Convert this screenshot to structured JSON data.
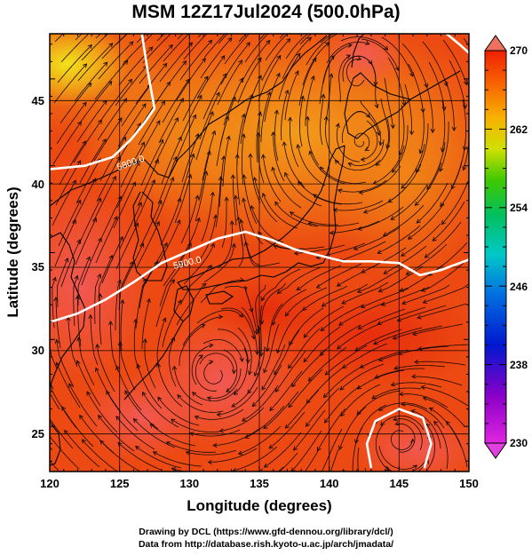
{
  "title": "MSM 12Z17Jul2024 (500.0hPa)",
  "chart_data": {
    "type": "map",
    "xlabel": "Longitude (degrees)",
    "ylabel": "Latitude  (degrees)",
    "xlim": [
      120,
      150
    ],
    "ylim": [
      22.4,
      47.6
    ],
    "x_ticks": [
      "120",
      "125",
      "130",
      "135",
      "140",
      "145",
      "150"
    ],
    "y_ticks": [
      "25",
      "30",
      "35",
      "40",
      "45"
    ],
    "colorbar": {
      "min": 230,
      "max": 270,
      "ticks": [
        "270",
        "262",
        "254",
        "246",
        "238",
        "230"
      ]
    },
    "contour_labels": [
      "5800.0",
      "5900.0"
    ],
    "contours": [
      {
        "value": 5800,
        "points": [
          [
            126.6,
            47.6
          ],
          [
            127.0,
            45.5
          ],
          [
            127.5,
            43.3
          ],
          [
            126.8,
            42.5
          ],
          [
            125.8,
            41.5
          ],
          [
            124.5,
            40.5
          ],
          [
            122.5,
            40.0
          ],
          [
            120.0,
            39.8
          ]
        ]
      },
      {
        "value": 5900,
        "points": [
          [
            120.0,
            31.0
          ],
          [
            122.0,
            31.5
          ],
          [
            124.0,
            32.3
          ],
          [
            126.0,
            33.3
          ],
          [
            128.0,
            34.4
          ],
          [
            130.0,
            35.1
          ],
          [
            132.0,
            35.8
          ],
          [
            134.0,
            36.2
          ],
          [
            136.0,
            35.7
          ],
          [
            137.5,
            35.2
          ],
          [
            139.0,
            34.9
          ],
          [
            141.0,
            34.5
          ],
          [
            143.0,
            34.5
          ],
          [
            145.0,
            34.4
          ],
          [
            146.5,
            33.7
          ],
          [
            148.0,
            34.0
          ],
          [
            150.0,
            34.6
          ]
        ]
      },
      {
        "value": 5900,
        "points": [
          [
            143.0,
            22.6
          ],
          [
            142.7,
            24.0
          ],
          [
            143.3,
            25.3
          ],
          [
            145.0,
            26.0
          ],
          [
            146.7,
            25.5
          ],
          [
            147.3,
            24.0
          ],
          [
            146.8,
            22.6
          ]
        ]
      },
      {
        "value": 5800,
        "points": [
          [
            148.4,
            47.6
          ],
          [
            149.3,
            47.0
          ],
          [
            150.0,
            46.5
          ]
        ]
      }
    ],
    "vortices": [
      {
        "lon": 131.8,
        "lat": 27.8,
        "type": "cyclonic"
      },
      {
        "lon": 142.3,
        "lat": 41.2,
        "type": "cyclonic"
      },
      {
        "lon": 142.0,
        "lat": 45.8,
        "type": "cyclonic"
      },
      {
        "lon": 145.0,
        "lat": 24.5,
        "type": "anticyclonic"
      }
    ]
  },
  "credits": [
    "Drawing by DCL (https://www.gfd-dennou.org/library/dcl/)",
    "Data from http://database.rish.kyoto-u.ac.jp/arch/jmadata/"
  ]
}
